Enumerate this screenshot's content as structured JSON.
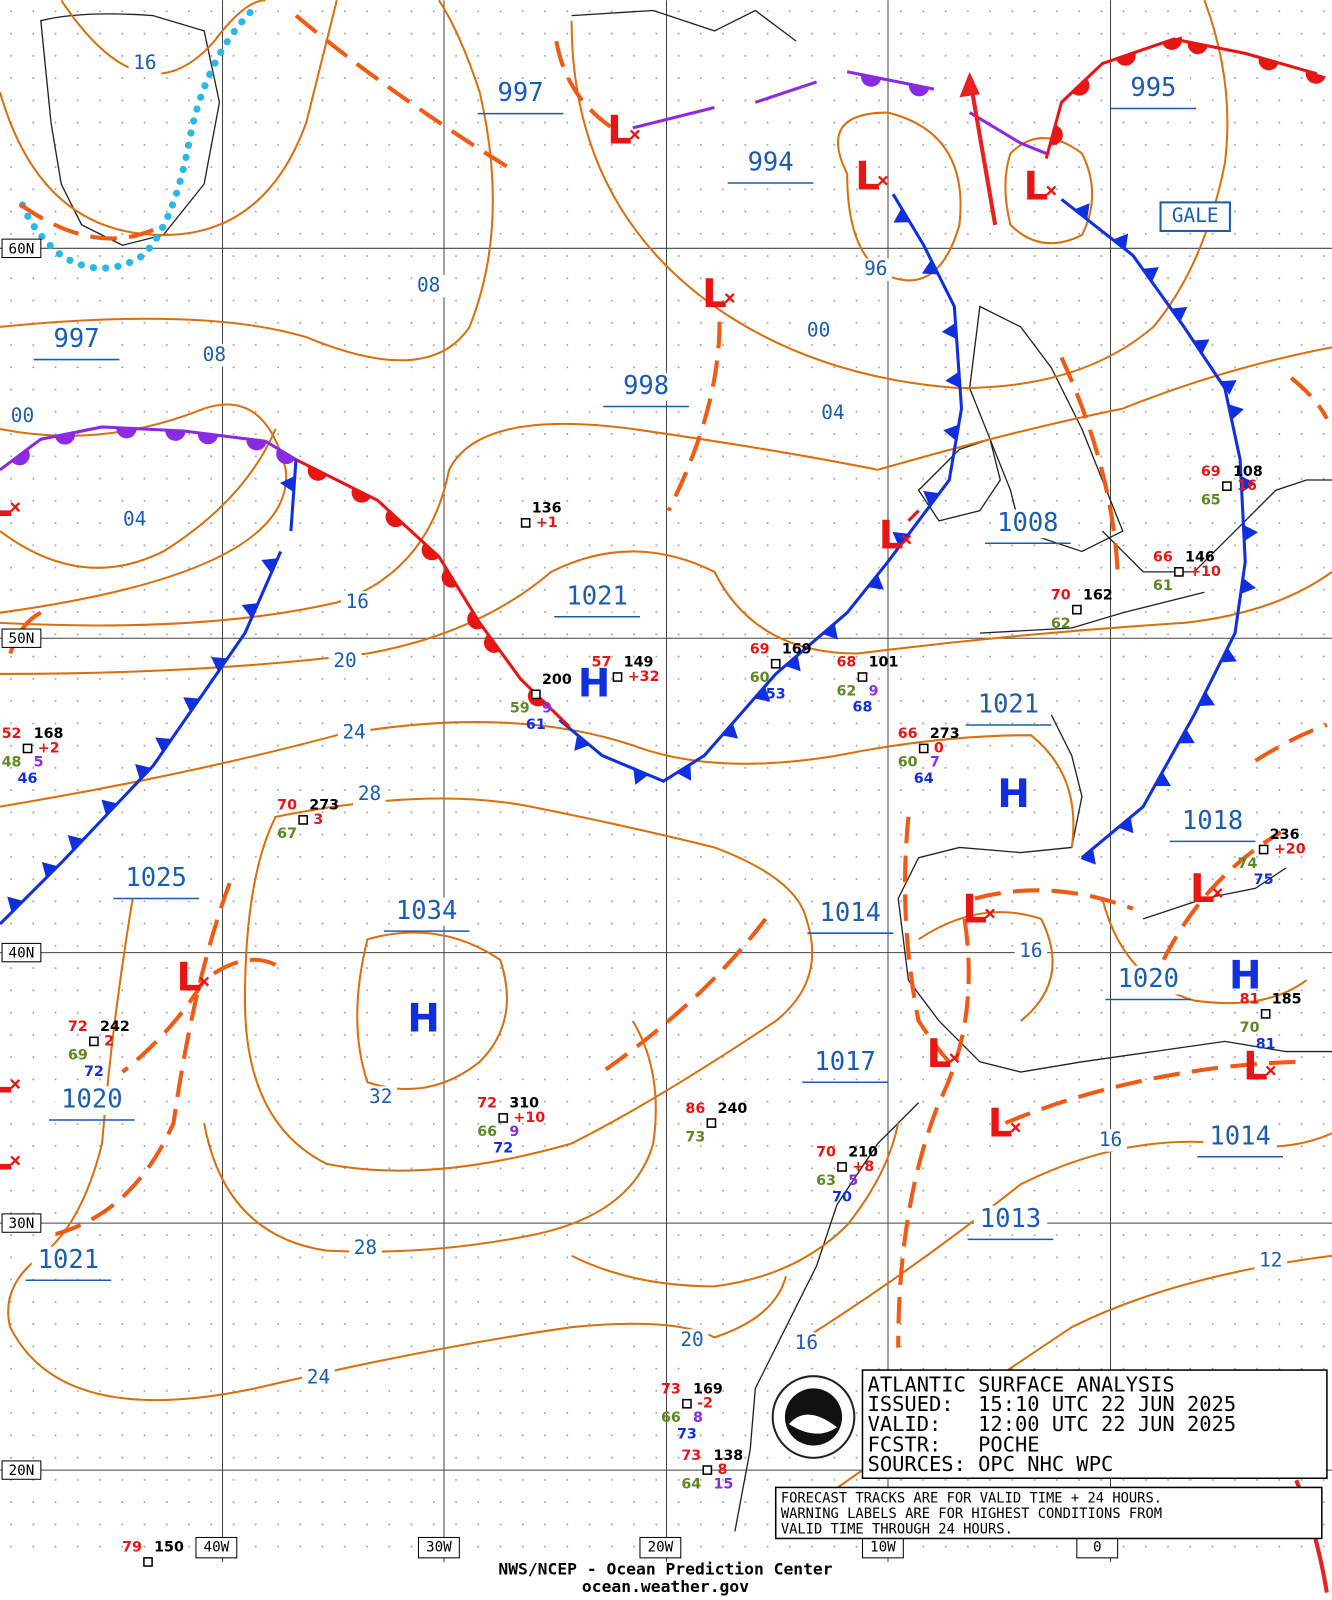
{
  "map": {
    "info": {
      "title": "ATLANTIC SURFACE ANALYSIS",
      "issued": "ISSUED:  15:10 UTC 22 JUN 2025",
      "valid": "VALID:   12:00 UTC 22 JUN 2025",
      "forecaster": "FCSTR:   POCHE",
      "sources": "SOURCES: OPC NHC WPC"
    },
    "notes": [
      "FORECAST TRACKS ARE FOR VALID TIME + 24 HOURS.",
      "WARNING LABELS ARE FOR HIGHEST CONDITIONS FROM",
      "VALID TIME THROUGH 24 HOURS."
    ],
    "footer": [
      "NWS/NCEP - Ocean Prediction Center",
      "ocean.weather.gov"
    ],
    "warning_label": "GALE",
    "latitudes": [
      "60N",
      "50N",
      "40N",
      "30N",
      "20N"
    ],
    "longitudes": [
      "40W",
      "30W",
      "20W",
      "10W",
      "0"
    ],
    "centers": [
      "L",
      "L",
      "L",
      "L",
      "L",
      "L",
      "L",
      "L",
      "L",
      "L",
      "L",
      "L",
      "L",
      "L",
      "H",
      "H",
      "H",
      "H"
    ],
    "pressure_labels": [
      "997",
      "994",
      "995",
      "997",
      "998",
      "1021",
      "1008",
      "1021",
      "1018",
      "1025",
      "1034",
      "1014",
      "1020",
      "1017",
      "1020",
      "1014",
      "1021",
      "1013"
    ],
    "isobar_labels": [
      "16",
      "08",
      "08",
      "00",
      "04",
      "96",
      "00",
      "04",
      "16",
      "20",
      "24",
      "28",
      "32",
      "28",
      "24",
      "20",
      "16",
      "16",
      "16",
      "12"
    ],
    "stations": [
      {
        "p": "136",
        "tend": "+1"
      },
      {
        "p": "200",
        "dew": "59",
        "wave": "9",
        "sst": "61"
      },
      {
        "t": "57",
        "p": "149",
        "tend": "+32"
      },
      {
        "t": "69",
        "p": "169",
        "dew": "60",
        "sst": "53"
      },
      {
        "t": "68",
        "p": "101",
        "dew": "62",
        "wave": "9",
        "sst": "68"
      },
      {
        "t": "66",
        "p": "273",
        "tend": "0",
        "dew": "60",
        "wave": "7",
        "sst": "64"
      },
      {
        "t": "70",
        "p": "162",
        "dew": "62"
      },
      {
        "t": "66",
        "p": "146",
        "tend": "+10",
        "dew": "61"
      },
      {
        "t": "69",
        "p": "108",
        "tend": "16",
        "dew": "65"
      },
      {
        "p": "236",
        "tend": "+20",
        "dew": "74",
        "sst": "75"
      },
      {
        "t": "81",
        "p": "185",
        "dew": "70",
        "sst": "81"
      },
      {
        "t": "52",
        "p": "168",
        "tend": "+2",
        "dew": "48",
        "wave": "5",
        "sst": "46"
      },
      {
        "t": "70",
        "p": "273",
        "tend": "3",
        "dew": "67"
      },
      {
        "t": "72",
        "p": "242",
        "tend": "2",
        "dew": "69",
        "sst": "72"
      },
      {
        "t": "72",
        "p": "310",
        "tend": "+10",
        "dew": "66",
        "wave": "9",
        "sst": "72"
      },
      {
        "t": "86",
        "p": "240",
        "dew": "73"
      },
      {
        "t": "70",
        "p": "210",
        "tend": "+8",
        "dew": "63",
        "wave": "5",
        "sst": "70"
      },
      {
        "t": "73",
        "p": "169",
        "tend": "-2",
        "dew": "66",
        "wave": "8",
        "sst": "73"
      },
      {
        "t": "73",
        "p": "138",
        "tend": "8",
        "dew": "64",
        "wave": "15"
      },
      {
        "t": "79",
        "p": "150"
      }
    ]
  }
}
